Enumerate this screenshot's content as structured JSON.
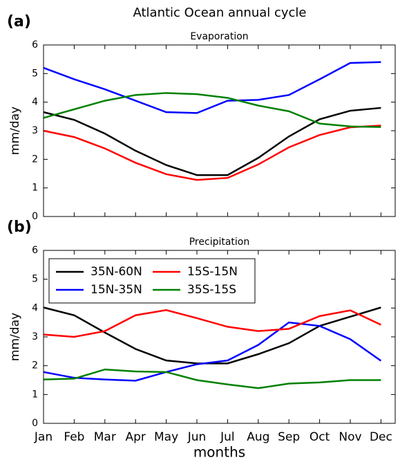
{
  "title": "Atlantic Ocean annual cycle",
  "chart_data": [
    {
      "type": "line",
      "panel_label": "(a)",
      "title": "Evaporation",
      "y_label": "mm/day",
      "ylim": [
        0,
        6
      ],
      "yticks": [
        0,
        1,
        2,
        3,
        4,
        5,
        6
      ],
      "series": [
        {
          "color": "#000000",
          "values": [
            3.65,
            3.38,
            2.9,
            2.3,
            1.8,
            1.45,
            1.45,
            2.05,
            2.8,
            3.4,
            3.7,
            3.8
          ]
        },
        {
          "color": "#0000ff",
          "values": [
            5.2,
            4.8,
            4.45,
            4.05,
            3.65,
            3.62,
            4.05,
            4.08,
            4.25,
            4.8,
            5.37,
            5.4
          ]
        },
        {
          "color": "#ff0000",
          "values": [
            3.0,
            2.78,
            2.38,
            1.88,
            1.48,
            1.28,
            1.35,
            1.82,
            2.42,
            2.85,
            3.12,
            3.18
          ]
        },
        {
          "color": "#008000",
          "values": [
            3.45,
            3.75,
            4.05,
            4.25,
            4.32,
            4.28,
            4.15,
            3.88,
            3.68,
            3.25,
            3.15,
            3.13
          ]
        }
      ]
    },
    {
      "type": "line",
      "panel_label": "(b)",
      "title": "Precipitation",
      "y_label": "mm/day",
      "x_label": "months",
      "categories": [
        "Jan",
        "Feb",
        "Mar",
        "Apr",
        "May",
        "Jun",
        "Jul",
        "Aug",
        "Sep",
        "Oct",
        "Nov",
        "Dec"
      ],
      "ylim": [
        0,
        6
      ],
      "yticks": [
        0,
        1,
        2,
        3,
        4,
        5,
        6
      ],
      "legend": "upper left",
      "series": [
        {
          "name": "35N-60N",
          "color": "#000000",
          "values": [
            4.02,
            3.75,
            3.15,
            2.58,
            2.18,
            2.08,
            2.08,
            2.4,
            2.78,
            3.38,
            3.7,
            4.02
          ]
        },
        {
          "name": "15N-35N",
          "color": "#0000ff",
          "values": [
            1.78,
            1.58,
            1.52,
            1.48,
            1.78,
            2.05,
            2.18,
            2.72,
            3.5,
            3.38,
            2.92,
            2.17
          ]
        },
        {
          "name": "15S-15N",
          "color": "#ff0000",
          "values": [
            3.08,
            3.0,
            3.2,
            3.75,
            3.93,
            3.65,
            3.35,
            3.2,
            3.28,
            3.72,
            3.92,
            3.42
          ]
        },
        {
          "name": "35S-15S",
          "color": "#008000",
          "values": [
            1.52,
            1.55,
            1.87,
            1.8,
            1.78,
            1.5,
            1.35,
            1.22,
            1.38,
            1.42,
            1.5,
            1.5
          ]
        }
      ]
    }
  ]
}
